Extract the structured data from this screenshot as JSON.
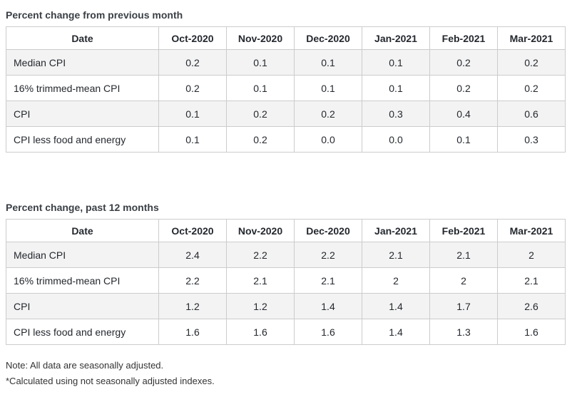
{
  "tables": [
    {
      "title": "Percent change from previous month",
      "columns": [
        "Date",
        "Oct-2020",
        "Nov-2020",
        "Dec-2020",
        "Jan-2021",
        "Feb-2021",
        "Mar-2021"
      ],
      "rows": [
        {
          "label": "Median CPI",
          "values": [
            "0.2",
            "0.1",
            "0.1",
            "0.1",
            "0.2",
            "0.2"
          ]
        },
        {
          "label": "16% trimmed-mean CPI",
          "values": [
            "0.2",
            "0.1",
            "0.1",
            "0.1",
            "0.2",
            "0.2"
          ]
        },
        {
          "label": "CPI",
          "values": [
            "0.1",
            "0.2",
            "0.2",
            "0.3",
            "0.4",
            "0.6"
          ]
        },
        {
          "label": "CPI less food and energy",
          "values": [
            "0.1",
            "0.2",
            "0.0",
            "0.0",
            "0.1",
            "0.3"
          ]
        }
      ]
    },
    {
      "title": "Percent change, past 12 months",
      "columns": [
        "Date",
        "Oct-2020",
        "Nov-2020",
        "Dec-2020",
        "Jan-2021",
        "Feb-2021",
        "Mar-2021"
      ],
      "rows": [
        {
          "label": "Median CPI",
          "values": [
            "2.4",
            "2.2",
            "2.2",
            "2.1",
            "2.1",
            "2"
          ]
        },
        {
          "label": "16% trimmed-mean CPI",
          "values": [
            "2.2",
            "2.1",
            "2.1",
            "2",
            "2",
            "2.1"
          ]
        },
        {
          "label": "CPI",
          "values": [
            "1.2",
            "1.2",
            "1.4",
            "1.4",
            "1.7",
            "2.6"
          ]
        },
        {
          "label": "CPI less food and energy",
          "values": [
            "1.6",
            "1.6",
            "1.6",
            "1.4",
            "1.3",
            "1.6"
          ]
        }
      ]
    }
  ],
  "notes": [
    "Note: All data are seasonally adjusted.",
    "*Calculated using not seasonally adjusted indexes."
  ],
  "colors": {
    "title_text": "#3b4046",
    "cell_text": "#24282e",
    "note_text": "#333333",
    "border": "#cccccc",
    "stripe_bg": "#f3f3f3"
  },
  "chart_data": [
    {
      "type": "table",
      "title": "Percent change from previous month",
      "columns": [
        "Oct-2020",
        "Nov-2020",
        "Dec-2020",
        "Jan-2021",
        "Feb-2021",
        "Mar-2021"
      ],
      "series": [
        {
          "name": "Median CPI",
          "values": [
            0.2,
            0.1,
            0.1,
            0.1,
            0.2,
            0.2
          ]
        },
        {
          "name": "16% trimmed-mean CPI",
          "values": [
            0.2,
            0.1,
            0.1,
            0.1,
            0.2,
            0.2
          ]
        },
        {
          "name": "CPI",
          "values": [
            0.1,
            0.2,
            0.2,
            0.3,
            0.4,
            0.6
          ]
        },
        {
          "name": "CPI less food and energy",
          "values": [
            0.1,
            0.2,
            0.0,
            0.0,
            0.1,
            0.3
          ]
        }
      ]
    },
    {
      "type": "table",
      "title": "Percent change, past 12 months",
      "columns": [
        "Oct-2020",
        "Nov-2020",
        "Dec-2020",
        "Jan-2021",
        "Feb-2021",
        "Mar-2021"
      ],
      "series": [
        {
          "name": "Median CPI",
          "values": [
            2.4,
            2.2,
            2.2,
            2.1,
            2.1,
            2
          ]
        },
        {
          "name": "16% trimmed-mean CPI",
          "values": [
            2.2,
            2.1,
            2.1,
            2,
            2,
            2.1
          ]
        },
        {
          "name": "CPI",
          "values": [
            1.2,
            1.2,
            1.4,
            1.4,
            1.7,
            2.6
          ]
        },
        {
          "name": "CPI less food and energy",
          "values": [
            1.6,
            1.6,
            1.6,
            1.4,
            1.3,
            1.6
          ]
        }
      ]
    }
  ]
}
